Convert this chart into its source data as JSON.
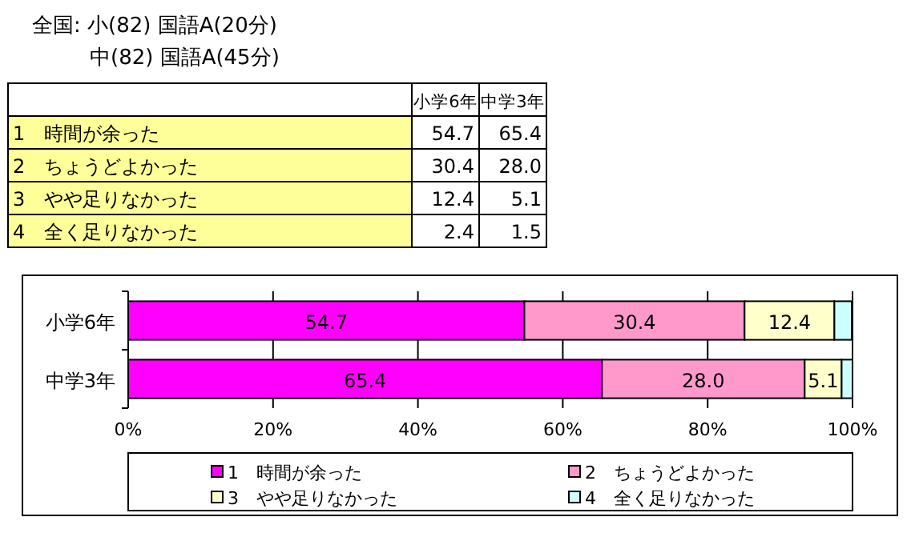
{
  "chart_data": [
    {
      "type": "other",
      "title": "全国: 小(82) 国語A(20分)",
      "subtitle": "中(82) 国語A(45分)",
      "categories": [
        "小学6年",
        "中学3年"
      ],
      "series": [
        {
          "name": "1　時間が余った",
          "values": [
            54.7,
            65.4
          ],
          "value_labels": [
            "54.7",
            "65.4"
          ]
        },
        {
          "name": "2　ちょうどよかった",
          "values": [
            30.4,
            28.0
          ],
          "value_labels": [
            "30.4",
            "28.0"
          ]
        },
        {
          "name": "3　やや足りなかった",
          "values": [
            12.4,
            5.1
          ],
          "value_labels": [
            "12.4",
            "5.1"
          ]
        },
        {
          "name": "4　全く足りなかった",
          "values": [
            2.4,
            1.5
          ],
          "value_labels": [
            "2.4",
            "1.5"
          ]
        }
      ]
    },
    {
      "type": "bar",
      "orientation": "horizontal",
      "stacked": true,
      "categories": [
        "小学6年",
        "中学3年"
      ],
      "series": [
        {
          "name": "1　時間が余った",
          "color": "#ff00ff",
          "values": [
            54.7,
            65.4
          ],
          "value_labels": [
            "54.7",
            "65.4"
          ]
        },
        {
          "name": "2　ちょうどよかった",
          "color": "#ff99cc",
          "values": [
            30.4,
            28.0
          ],
          "value_labels": [
            "30.4",
            "28.0"
          ]
        },
        {
          "name": "3　やや足りなかった",
          "color": "#ffffcc",
          "values": [
            12.4,
            5.1
          ],
          "value_labels": [
            "12.4",
            "5.1"
          ]
        },
        {
          "name": "4　全く足りなかった",
          "color": "#ccffff",
          "values": [
            2.4,
            1.5
          ],
          "value_labels": [
            null,
            null
          ]
        }
      ],
      "xlim": [
        0,
        100
      ],
      "xticks": [
        {
          "value": 0,
          "label": "0%"
        },
        {
          "value": 20,
          "label": "20%"
        },
        {
          "value": 40,
          "label": "40%"
        },
        {
          "value": 60,
          "label": "60%"
        },
        {
          "value": 80,
          "label": "80%"
        },
        {
          "value": 100,
          "label": "100%"
        }
      ],
      "grid": "x",
      "legend": "bottom"
    }
  ]
}
